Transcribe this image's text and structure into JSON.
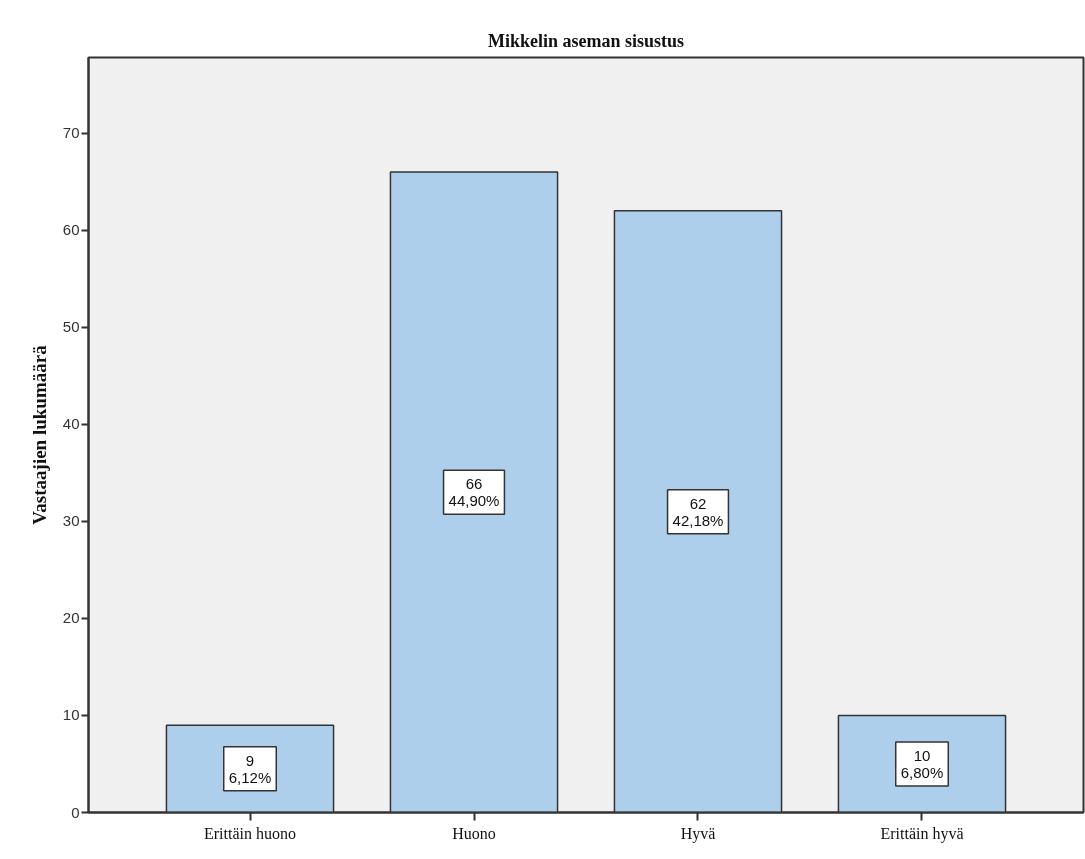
{
  "chart_data": {
    "type": "bar",
    "title": "Mikkelin aseman sisustus",
    "ylabel": "Vastaajien lukumäärä",
    "categories": [
      "Erittäin huono",
      "Huono",
      "Hyvä",
      "Erittäin hyvä"
    ],
    "values": [
      9,
      66,
      62,
      10
    ],
    "color": "#aecfec",
    "value_labels": [
      "9\n6,12%",
      "66\n44,90%",
      "62\n42,18%",
      "10\n6,80%"
    ],
    "ylim": [
      0,
      77.8
    ],
    "yticks": [
      0,
      10,
      20,
      30,
      40,
      50,
      60,
      70
    ],
    "grid": false
  }
}
